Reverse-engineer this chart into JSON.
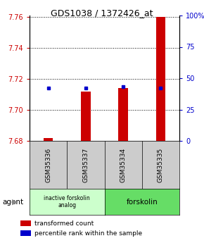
{
  "title": "GDS1038 / 1372426_at",
  "categories": [
    "GSM35336",
    "GSM35337",
    "GSM35334",
    "GSM35335"
  ],
  "bar_values": [
    7.682,
    7.712,
    7.714,
    7.76
  ],
  "bar_base": 7.68,
  "blue_marker_values": [
    7.714,
    7.714,
    7.715,
    7.714
  ],
  "ylim_left": [
    7.68,
    7.761
  ],
  "ylim_right": [
    0,
    100
  ],
  "left_ticks": [
    7.68,
    7.7,
    7.72,
    7.74,
    7.76
  ],
  "right_ticks": [
    0,
    25,
    50,
    75,
    100
  ],
  "right_tick_labels": [
    "0",
    "25",
    "50",
    "75",
    "100%"
  ],
  "bar_color": "#cc0000",
  "marker_color": "#0000cc",
  "left_tick_color": "#cc0000",
  "right_tick_color": "#0000cc",
  "legend_red_label": "transformed count",
  "legend_blue_label": "percentile rank within the sample",
  "bar_width": 0.25,
  "background_color": "#ffffff",
  "plot_bg_color": "#ffffff",
  "gsm_box_color": "#cccccc",
  "agent1_color": "#ccffcc",
  "agent2_color": "#66dd66"
}
